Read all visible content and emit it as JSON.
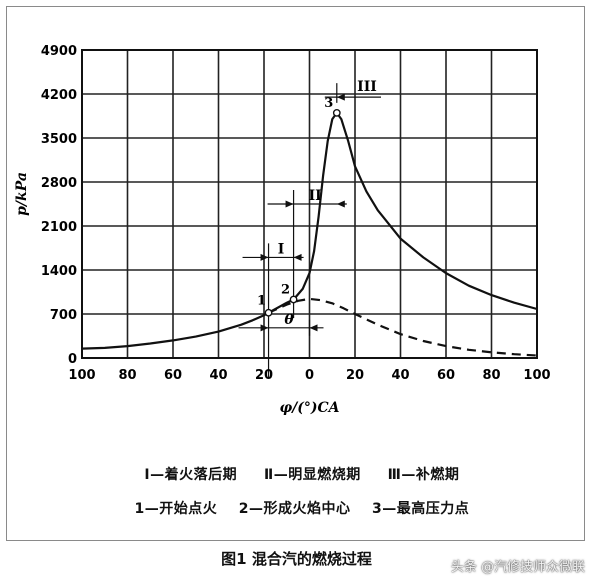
{
  "chart_data": {
    "type": "line",
    "xlabel": "φ/(°)CA",
    "ylabel": "p/kPa",
    "x_ticks": [
      -100,
      -80,
      -60,
      -40,
      -20,
      0,
      20,
      40,
      60,
      80,
      100
    ],
    "x_tick_labels": [
      "100",
      "80",
      "60",
      "40",
      "20",
      "0",
      "20",
      "40",
      "60",
      "80",
      "100"
    ],
    "y_ticks": [
      0,
      700,
      1400,
      2100,
      2800,
      3500,
      4200,
      4900
    ],
    "y_tick_labels": [
      "0",
      "700",
      "1400",
      "2100",
      "2800",
      "3500",
      "4200",
      "4900"
    ],
    "xlim": [
      -100,
      100
    ],
    "ylim": [
      0,
      4900
    ],
    "grid": true,
    "series": [
      {
        "style": "solid",
        "x": [
          -100,
          -90,
          -80,
          -70,
          -60,
          -50,
          -40,
          -30,
          -25,
          -20,
          -18,
          -15,
          -10,
          -7,
          -3,
          0,
          2,
          4,
          6,
          8,
          10,
          12,
          14,
          17,
          20,
          25,
          30,
          40,
          50,
          60,
          70,
          80,
          90,
          100
        ],
        "y": [
          150,
          160,
          190,
          230,
          280,
          340,
          420,
          530,
          600,
          680,
          720,
          780,
          880,
          930,
          1100,
          1350,
          1700,
          2250,
          2900,
          3450,
          3800,
          3900,
          3800,
          3450,
          3050,
          2650,
          2350,
          1900,
          1600,
          1350,
          1150,
          1000,
          880,
          780
        ]
      },
      {
        "style": "dashed",
        "x": [
          -18,
          -10,
          -5,
          0,
          5,
          10,
          15,
          20,
          30,
          40,
          50,
          60,
          70,
          80,
          90,
          100
        ],
        "y": [
          720,
          850,
          910,
          940,
          920,
          870,
          790,
          700,
          530,
          380,
          270,
          190,
          130,
          90,
          60,
          40
        ]
      }
    ],
    "points": [
      {
        "label": "1",
        "x": -18,
        "y": 720
      },
      {
        "label": "2",
        "x": -7,
        "y": 930
      },
      {
        "label": "3",
        "x": 12,
        "y": 3900
      }
    ],
    "phases": [
      {
        "label": "I",
        "from": -18,
        "to": -7,
        "y": 1600
      },
      {
        "label": "II",
        "from": -7,
        "to": 12,
        "y": 2450
      },
      {
        "label": "III",
        "from": 12,
        "to": 20,
        "y": 4150
      }
    ],
    "theta_label": "θ",
    "theta_range": [
      -18,
      0
    ],
    "theta_y": 480
  },
  "legend": {
    "line1": [
      "Ⅰ—着火落后期",
      "Ⅱ—明显燃烧期",
      "Ⅲ—补燃期"
    ],
    "line2": [
      "1—开始点火",
      "2—形成火焰中心",
      "3—最高压力点"
    ]
  },
  "caption": "图1 混合汽的燃烧过程",
  "watermark": "头条 @汽修技师众微联"
}
